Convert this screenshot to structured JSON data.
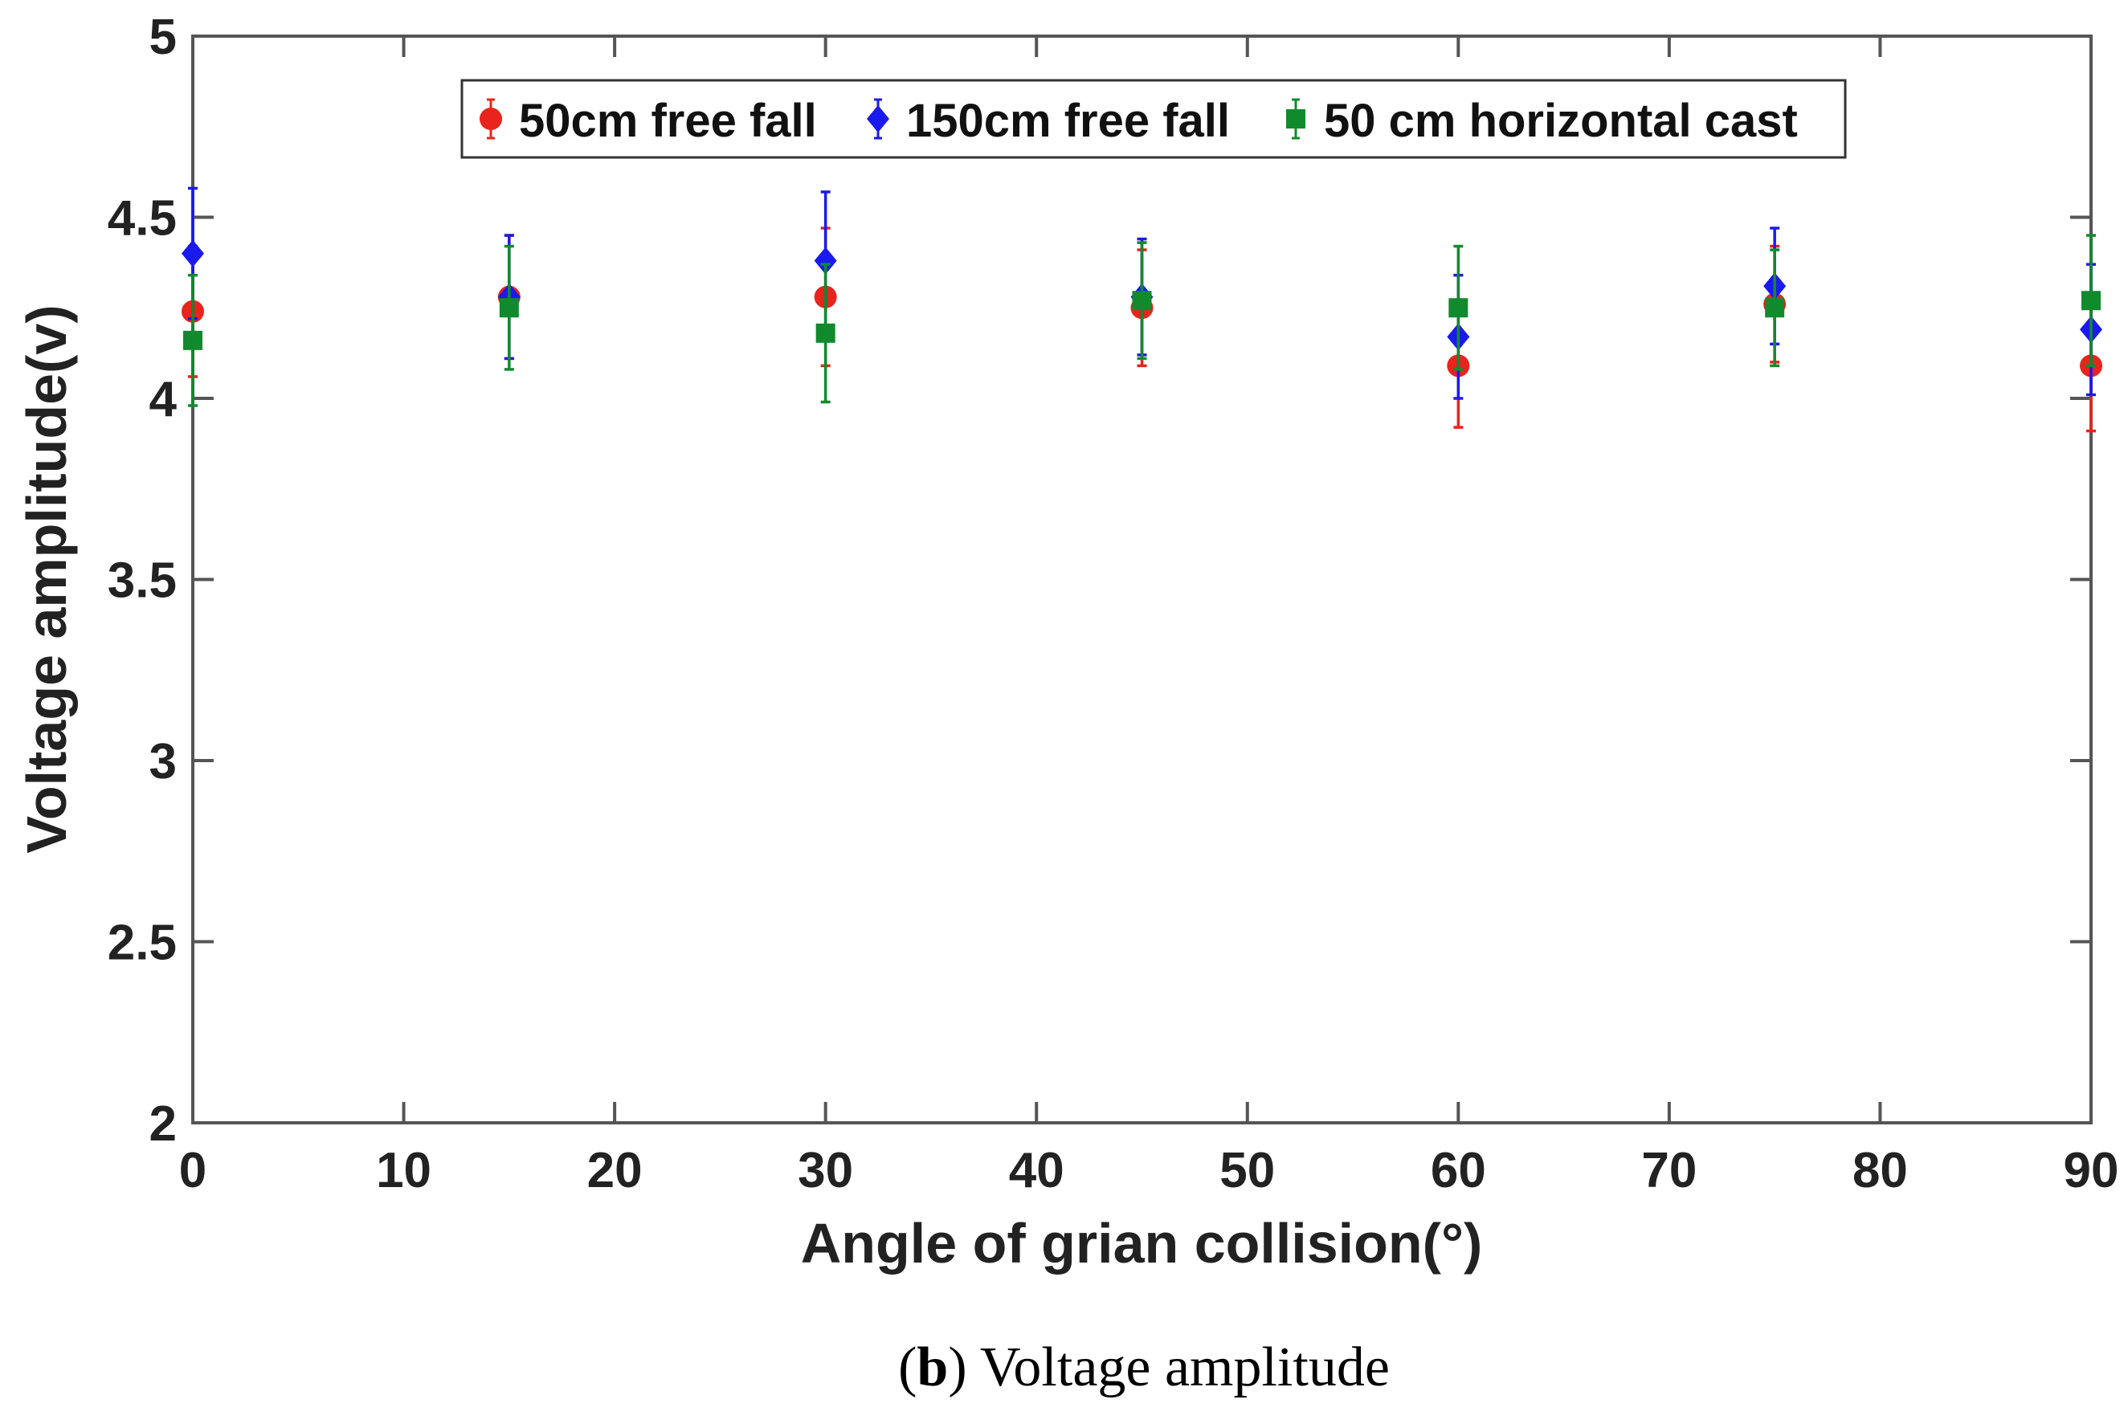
{
  "chart_data": {
    "type": "scatter",
    "title": "",
    "xlabel": "Angle of grian collision(°)",
    "ylabel": "Voltage amplitude(v)",
    "xlim": [
      0,
      90
    ],
    "ylim": [
      2,
      5
    ],
    "xticks": [
      "0",
      "10",
      "20",
      "30",
      "40",
      "50",
      "60",
      "70",
      "80",
      "90"
    ],
    "yticks": [
      "2",
      "2.5",
      "3",
      "3.5",
      "4",
      "4.5",
      "5"
    ],
    "xtick_values": [
      0,
      10,
      20,
      30,
      40,
      50,
      60,
      70,
      80,
      90
    ],
    "ytick_values": [
      2,
      2.5,
      3,
      3.5,
      4,
      4.5,
      5
    ],
    "grid": false,
    "legend_position": "top",
    "series": [
      {
        "name": "50cm free fall",
        "color": "#e8241c",
        "marker": "circle",
        "x": [
          0,
          15,
          30,
          45,
          60,
          75,
          90
        ],
        "y": [
          4.24,
          4.28,
          4.28,
          4.25,
          4.09,
          4.26,
          4.09
        ],
        "err": [
          0.18,
          0.17,
          0.19,
          0.16,
          0.17,
          0.16,
          0.18
        ]
      },
      {
        "name": "150cm free fall",
        "color": "#1a1aee",
        "marker": "diamond",
        "x": [
          0,
          15,
          30,
          45,
          60,
          75,
          90
        ],
        "y": [
          4.4,
          4.28,
          4.38,
          4.28,
          4.17,
          4.31,
          4.19
        ],
        "err": [
          0.18,
          0.17,
          0.19,
          0.16,
          0.17,
          0.16,
          0.18
        ]
      },
      {
        "name": "50 cm horizontal cast",
        "color": "#118a2e",
        "marker": "square",
        "x": [
          0,
          15,
          30,
          45,
          60,
          75,
          90
        ],
        "y": [
          4.16,
          4.25,
          4.18,
          4.27,
          4.25,
          4.25,
          4.27
        ],
        "err": [
          0.18,
          0.17,
          0.19,
          0.16,
          0.17,
          0.16,
          0.18
        ]
      }
    ]
  },
  "caption": {
    "open": "(",
    "letter": "b",
    "rest": ") Voltage amplitude"
  }
}
